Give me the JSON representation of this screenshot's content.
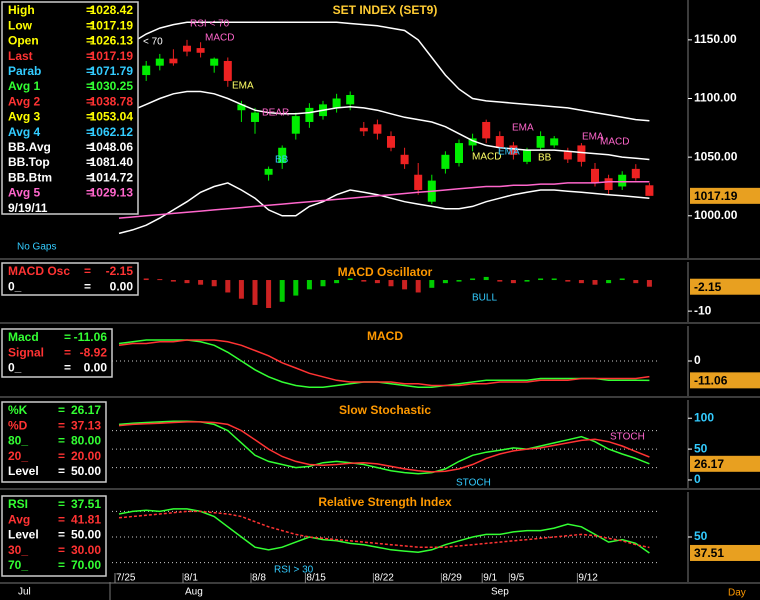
{
  "chart_data": [
    {
      "type": "candlestick",
      "title": "SET INDEX (SET9)",
      "title_color": "#ffcc33",
      "categories": [
        "7/25",
        null,
        null,
        null,
        null,
        "8/1",
        null,
        null,
        null,
        null,
        "8/8",
        null,
        null,
        null,
        "8/15",
        null,
        null,
        null,
        null,
        "8/22",
        null,
        null,
        null,
        null,
        "8/29",
        null,
        null,
        "9/1",
        null,
        "9/5",
        null,
        null,
        null,
        null,
        "9/12",
        null,
        null,
        null,
        null,
        null
      ],
      "open": [
        null,
        null,
        1120,
        1128,
        1134,
        1145,
        1143,
        1128,
        1132,
        1090,
        1080,
        1035,
        1045,
        1070,
        1080,
        1085,
        1092,
        1095,
        1075,
        1078,
        1068,
        1052,
        1035,
        1012,
        1040,
        1045,
        1060,
        1080,
        1068,
        1060,
        1046,
        1058,
        1060,
        1055,
        1060,
        1040,
        1032,
        1025,
        1040,
        1026
      ],
      "high": [
        null,
        null,
        1132,
        1138,
        1142,
        1150,
        1148,
        1135,
        1135,
        1098,
        1092,
        1042,
        1060,
        1088,
        1096,
        1098,
        1104,
        1106,
        1080,
        1082,
        1072,
        1058,
        1045,
        1035,
        1055,
        1065,
        1070,
        1082,
        1072,
        1063,
        1058,
        1072,
        1068,
        1058,
        1062,
        1045,
        1035,
        1038,
        1044,
        1028
      ],
      "low": [
        null,
        null,
        1115,
        1124,
        1128,
        1136,
        1135,
        1122,
        1110,
        1080,
        1070,
        1030,
        1040,
        1065,
        1075,
        1082,
        1088,
        1090,
        1068,
        1065,
        1055,
        1040,
        1018,
        1010,
        1036,
        1042,
        1055,
        1062,
        1055,
        1048,
        1044,
        1056,
        1058,
        1045,
        1042,
        1025,
        1018,
        1022,
        1030,
        1017
      ],
      "close": [
        null,
        null,
        1128,
        1134,
        1130,
        1140,
        1139,
        1134,
        1115,
        1095,
        1088,
        1040,
        1058,
        1085,
        1092,
        1095,
        1100,
        1103,
        1072,
        1070,
        1058,
        1044,
        1022,
        1030,
        1052,
        1062,
        1066,
        1066,
        1058,
        1052,
        1056,
        1068,
        1066,
        1048,
        1046,
        1028,
        1022,
        1035,
        1032,
        1017
      ],
      "up_color": "#00ee00",
      "down_color": "#ee2222",
      "series": [
        {
          "color": "#ffffff",
          "values": [
            1140,
            1148,
            1155,
            1160,
            1163,
            1165,
            1165,
            1165,
            1165,
            1165,
            1165,
            1165,
            1165,
            1165,
            1165,
            1165,
            1165,
            1164,
            1163,
            1162,
            1160,
            1158,
            1150,
            1135,
            1120,
            1108,
            1100,
            1098,
            1097,
            1096,
            1095,
            1094,
            1093,
            1092,
            1090,
            1088,
            1086,
            1084,
            1082,
            1081
          ]
        },
        {
          "color": "#ffffff",
          "values": [
            1085,
            1090,
            1095,
            1100,
            1104,
            1106,
            1106,
            1104,
            1100,
            1095,
            1090,
            1088,
            1087,
            1087,
            1088,
            1090,
            1092,
            1093,
            1092,
            1090,
            1087,
            1084,
            1082,
            1080,
            1076,
            1070,
            1064,
            1060,
            1058,
            1057,
            1056,
            1056,
            1056,
            1055,
            1054,
            1053,
            1052,
            1050,
            1049,
            1048
          ]
        },
        {
          "color": "#ffffff",
          "values": [
            985,
            988,
            992,
            998,
            1005,
            1012,
            1020,
            1025,
            1028,
            1022,
            1015,
            1005,
            1000,
            1000,
            1008,
            1012,
            1018,
            1022,
            1020,
            1018,
            1015,
            1012,
            1010,
            1008,
            1006,
            1006,
            1008,
            1012,
            1015,
            1018,
            1020,
            1022,
            1022,
            1021,
            1020,
            1019,
            1018,
            1017,
            1016,
            1015
          ]
        },
        {
          "color": "#ff66cc",
          "values": [
            998,
            999,
            1000,
            1001,
            1002,
            1003,
            1004,
            1005,
            1006,
            1007,
            1008,
            1009,
            1010,
            1011,
            1012,
            1013,
            1014,
            1015,
            1016,
            1017,
            1018,
            1019,
            1020,
            1021,
            1022,
            1023,
            1024,
            1025,
            1025,
            1026,
            1026,
            1027,
            1027,
            1028,
            1028,
            1028,
            1029,
            1029,
            1029,
            1029
          ]
        }
      ],
      "ylim": [
        964,
        1184
      ],
      "yticks": [
        {
          "value": 1150,
          "label": "1150.00"
        },
        {
          "value": 1100,
          "label": "1100.00"
        },
        {
          "value": 1050,
          "label": "1050.00"
        },
        {
          "value": 1000,
          "label": "1000.00"
        }
      ],
      "legend_rows": [
        {
          "label": "High",
          "sep": "=",
          "value": "1028.42",
          "color": "#ffff00"
        },
        {
          "label": "Low",
          "sep": "=",
          "value": "1017.19",
          "color": "#ffff00"
        },
        {
          "label": "Open",
          "sep": "=",
          "value": "1026.13",
          "color": "#ffff00"
        },
        {
          "label": "Last",
          "sep": "=",
          "value": "1017.19",
          "color": "#ff3333"
        },
        {
          "label": "Parab",
          "sep": "=",
          "value": "1071.79",
          "color": "#33ccff"
        },
        {
          "label": "Avg 1",
          "sep": "=",
          "value": "1030.25",
          "color": "#33ff33"
        },
        {
          "label": "Avg 2",
          "sep": "=",
          "value": "1038.78",
          "color": "#ff3333"
        },
        {
          "label": "Avg 3",
          "sep": "=",
          "value": "1053.04",
          "color": "#ffff00"
        },
        {
          "label": "Avg 4",
          "sep": "=",
          "value": "1062.12",
          "color": "#33ccff"
        },
        {
          "label": "BB.Avg",
          "sep": "=",
          "value": "1048.06",
          "color": "#ffffff"
        },
        {
          "label": "BB.Top",
          "sep": "=",
          "value": "1081.40",
          "color": "#ffffff"
        },
        {
          "label": "BB.Btm",
          "sep": "=",
          "value": "1014.72",
          "color": "#ffffff"
        },
        {
          "label": "Avg 5",
          "sep": "=",
          "value": "1029.13",
          "color": "#ff66cc"
        },
        {
          "label": "9/19/11",
          "color": "#ffffff"
        }
      ],
      "annotations": [
        "RSI < 70",
        "MACD",
        "< 70",
        "EMA",
        "BEAR",
        "BB",
        "EMA",
        "MACD",
        "EMA",
        "BB",
        "EMA",
        "MACD"
      ],
      "note": "No Gaps",
      "months": [
        "Jul",
        "Aug",
        "Sep"
      ],
      "x_unit": "Day"
    },
    {
      "type": "bar",
      "title": "MACD Oscillator",
      "title_color": "#ff9900",
      "values": [
        0.5,
        0.6,
        0.5,
        0.3,
        -0.5,
        -1,
        -1.5,
        -2,
        -4,
        -6,
        -8,
        -9,
        -7,
        -5,
        -3,
        -2,
        -1,
        0.5,
        -0.5,
        -1,
        -2,
        -3,
        -4,
        -2.5,
        -1,
        -0.5,
        0.5,
        1,
        -0.5,
        -1,
        -0.5,
        0.5,
        0.5,
        -0.5,
        -1,
        -1.5,
        -1,
        0.5,
        -1,
        -2.15
      ],
      "up_color": "#00cc00",
      "down_color": "#cc2222",
      "ylim": [
        -13.5,
        5.8
      ],
      "yticks": [
        -10
      ],
      "legend_rows": [
        {
          "label": "MACD Osc",
          "sep": "=",
          "value": "-2.15",
          "color": "#ff3333"
        },
        {
          "label": "0_",
          "sep": "=",
          "value": "0.00",
          "color": "#ffffff"
        }
      ],
      "annotations": [
        "BULL"
      ]
    },
    {
      "type": "line",
      "title": "MACD",
      "title_color": "#ff9900",
      "series": [
        {
          "color": "#33ff33",
          "values": [
            10,
            11,
            12,
            12,
            12,
            12,
            11,
            9,
            5,
            0,
            -5,
            -9,
            -12,
            -14,
            -15,
            -15,
            -14,
            -13,
            -12,
            -12,
            -13,
            -14,
            -15,
            -15,
            -14,
            -13,
            -12,
            -11,
            -11,
            -11,
            -11,
            -10,
            -10,
            -10,
            -10,
            -10,
            -11,
            -11,
            -11,
            -11.06
          ]
        },
        {
          "color": "#ff3333",
          "values": [
            9,
            10,
            10,
            11,
            11,
            12,
            12,
            12,
            11,
            9,
            6,
            3,
            -1,
            -4,
            -7,
            -9,
            -11,
            -12,
            -12,
            -12,
            -12,
            -13,
            -13,
            -14,
            -14,
            -14,
            -13,
            -13,
            -12,
            -12,
            -12,
            -11,
            -11,
            -11,
            -10,
            -10,
            -10,
            -10,
            -10,
            -8.92
          ]
        }
      ],
      "ylim": [
        -20,
        20
      ],
      "yticks": [
        0
      ],
      "levels": [
        0
      ],
      "legend_rows": [
        {
          "label": "Macd",
          "sep": "=",
          "value": "-11.06",
          "color": "#33ff33"
        },
        {
          "label": "Signal",
          "sep": "=",
          "value": "-8.92",
          "color": "#ff3333"
        },
        {
          "label": "0_",
          "sep": "=",
          "value": "0.00",
          "color": "#ffffff"
        }
      ],
      "annotations": []
    },
    {
      "type": "line",
      "title": "Slow Stochastic",
      "title_color": "#ff9900",
      "series": [
        {
          "color": "#33ff33",
          "values": [
            90,
            92,
            93,
            94,
            95,
            95,
            94,
            90,
            80,
            60,
            40,
            30,
            25,
            20,
            22,
            28,
            30,
            28,
            25,
            20,
            15,
            12,
            10,
            12,
            18,
            30,
            40,
            45,
            48,
            52,
            50,
            55,
            60,
            65,
            70,
            62,
            50,
            42,
            35,
            26.17
          ]
        },
        {
          "color": "#ff3333",
          "values": [
            88,
            90,
            91,
            92,
            93,
            94,
            94,
            93,
            90,
            80,
            65,
            50,
            38,
            30,
            25,
            24,
            25,
            27,
            28,
            26,
            22,
            18,
            15,
            13,
            14,
            18,
            25,
            35,
            42,
            47,
            50,
            52,
            56,
            60,
            64,
            66,
            62,
            55,
            46,
            37.13
          ]
        }
      ],
      "ylim": [
        -13,
        129.5
      ],
      "yticks": [
        100,
        50,
        0
      ],
      "levels": [
        80,
        50,
        20
      ],
      "legend_rows": [
        {
          "label": "%K",
          "sep": "=",
          "value": "26.17",
          "color": "#33ff33"
        },
        {
          "label": "%D",
          "sep": "=",
          "value": "37.13",
          "color": "#ff3333"
        },
        {
          "label": "80_",
          "sep": "=",
          "value": "80.00",
          "color": "#33ff33"
        },
        {
          "label": "20_",
          "sep": "=",
          "value": "20.00",
          "color": "#ff3333"
        },
        {
          "label": "Level",
          "sep": "=",
          "value": "50.00",
          "color": "#ffffff"
        }
      ],
      "annotations": [
        "STOCH",
        "STOCH"
      ]
    },
    {
      "type": "line",
      "title": "Relative Strength Index",
      "title_color": "#ff9900",
      "series": [
        {
          "color": "#33ff33",
          "values": [
            68,
            70,
            71,
            70,
            72,
            72,
            70,
            66,
            58,
            50,
            42,
            40,
            42,
            46,
            50,
            48,
            47,
            45,
            44,
            42,
            40,
            39,
            38,
            40,
            44,
            47,
            50,
            52,
            52,
            54,
            55,
            55,
            57,
            60,
            58,
            52,
            46,
            48,
            45,
            37.51
          ]
        },
        {
          "color": "#ff3333",
          "dash": "3 2",
          "values": [
            65,
            66,
            67,
            68,
            69,
            70,
            70,
            69,
            68,
            66,
            62,
            58,
            55,
            52,
            50,
            49,
            48,
            47,
            46,
            45,
            44,
            43,
            42,
            42,
            42,
            43,
            44,
            45,
            46,
            47,
            48,
            49,
            50,
            51,
            52,
            51,
            49,
            47,
            44,
            41.81
          ]
        }
      ],
      "ylim": [
        14.8,
        85.2
      ],
      "yticks": [
        50
      ],
      "levels": [
        70,
        50,
        30
      ],
      "legend_rows": [
        {
          "label": "RSI",
          "sep": "=",
          "value": "37.51",
          "color": "#33ff33"
        },
        {
          "label": "Avg",
          "sep": "=",
          "value": "41.81",
          "color": "#ff3333"
        },
        {
          "label": "Level",
          "sep": "=",
          "value": "50.00",
          "color": "#ffffff"
        },
        {
          "label": "30_",
          "sep": "=",
          "value": "30.00",
          "color": "#ff3333"
        },
        {
          "label": "70_",
          "sep": "=",
          "value": "70.00",
          "color": "#33ff33"
        }
      ],
      "annotations": [
        "RSI > 30"
      ]
    }
  ]
}
